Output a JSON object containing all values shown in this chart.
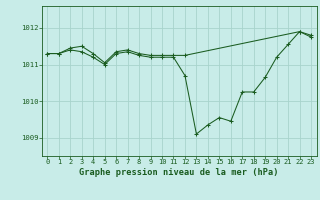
{
  "title": "Graphe pression niveau de la mer (hPa)",
  "background_color": "#c8ece8",
  "grid_color": "#a8d4cc",
  "line_color": "#1a5c20",
  "marker_color": "#1a5c20",
  "xlim": [
    -0.5,
    23.5
  ],
  "ylim": [
    1008.5,
    1012.6
  ],
  "yticks": [
    1009,
    1010,
    1011,
    1012
  ],
  "xticks": [
    0,
    1,
    2,
    3,
    4,
    5,
    6,
    7,
    8,
    9,
    10,
    11,
    12,
    13,
    14,
    15,
    16,
    17,
    18,
    19,
    20,
    21,
    22,
    23
  ],
  "series": [
    {
      "x": [
        0,
        1,
        2,
        3,
        4,
        5,
        6,
        7,
        8,
        9,
        10,
        11,
        12,
        13,
        14,
        15,
        16,
        17,
        18,
        19,
        20,
        21,
        22,
        23
      ],
      "y": [
        1011.3,
        1011.3,
        1011.4,
        1011.35,
        1011.2,
        1011.0,
        1011.3,
        1011.35,
        1011.25,
        1011.2,
        1011.2,
        1011.2,
        1010.7,
        1009.1,
        1009.35,
        1009.55,
        1009.45,
        1010.25,
        1010.25,
        1010.65,
        1011.2,
        1011.55,
        1011.9,
        1011.8
      ]
    },
    {
      "x": [
        0,
        1,
        2,
        3,
        4,
        5,
        6,
        7,
        8,
        9,
        10,
        11,
        12,
        22,
        23
      ],
      "y": [
        1011.3,
        1011.3,
        1011.45,
        1011.5,
        1011.3,
        1011.05,
        1011.35,
        1011.4,
        1011.3,
        1011.25,
        1011.25,
        1011.25,
        1011.25,
        1011.9,
        1011.75
      ]
    }
  ],
  "ylabel_fontsize": 5.2,
  "xlabel_fontsize": 6.2,
  "tick_fontsize": 5.0
}
